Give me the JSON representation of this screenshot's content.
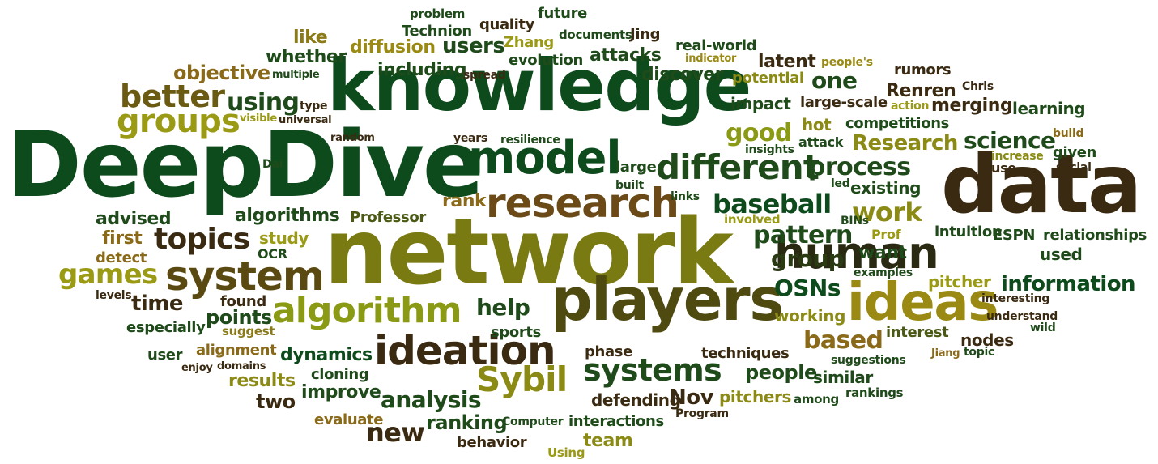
{
  "colors": {
    "dark_green": "#1f4a1a",
    "forest_green": "#0e4b1c",
    "olive": "#6b6f10",
    "gold": "#9a9a14",
    "brown": "#3b2a12",
    "ochre": "#8a6a18",
    "moss": "#4a5a14"
  },
  "words": [
    {
      "text": "DeepDive",
      "color": "#0e4b1c"
    },
    {
      "text": "network",
      "color": "#7a7a12"
    },
    {
      "text": "knowledge",
      "color": "#0e4b1c"
    },
    {
      "text": "data",
      "color": "#3b2a12"
    },
    {
      "text": "players",
      "color": "#4f4a10"
    },
    {
      "text": "model",
      "color": "#0e4b1c"
    },
    {
      "text": "research",
      "color": "#6b4a18"
    },
    {
      "text": "ideas",
      "color": "#9a8a14"
    },
    {
      "text": "human",
      "color": "#2a2a12"
    },
    {
      "text": "ideation",
      "color": "#3b2a12"
    },
    {
      "text": "system",
      "color": "#5a4a12"
    },
    {
      "text": "algorithm",
      "color": "#8a9a14"
    },
    {
      "text": "different",
      "color": "#1f4a1a"
    },
    {
      "text": "groups",
      "color": "#9a9a14"
    },
    {
      "text": "better",
      "color": "#6b5a12"
    },
    {
      "text": "Sybil",
      "color": "#8a8a14"
    },
    {
      "text": "systems",
      "color": "#1f4a1a"
    },
    {
      "text": "topics",
      "color": "#3b2a12"
    },
    {
      "text": "baseball",
      "color": "#0e4b1c"
    },
    {
      "text": "pattern",
      "color": "#1f4a1a"
    },
    {
      "text": "games",
      "color": "#9a9a14"
    },
    {
      "text": "process",
      "color": "#1f4a1a"
    },
    {
      "text": "work",
      "color": "#8a8a14"
    },
    {
      "text": "information",
      "color": "#0e4b1c"
    },
    {
      "text": "analysis",
      "color": "#1f4a1a"
    },
    {
      "text": "new",
      "color": "#3b2a12"
    },
    {
      "text": "good",
      "color": "#8a9a14"
    },
    {
      "text": "science",
      "color": "#1f4a1a"
    },
    {
      "text": "using",
      "color": "#1f4a1a"
    },
    {
      "text": "group",
      "color": "#2a3a12"
    },
    {
      "text": "help",
      "color": "#1f4a1a"
    },
    {
      "text": "OSNs",
      "color": "#0e4b1c"
    },
    {
      "text": "based",
      "color": "#8a6a18"
    },
    {
      "text": "people",
      "color": "#1f4a1a"
    },
    {
      "text": "ranking",
      "color": "#1f4a1a"
    },
    {
      "text": "time",
      "color": "#3b2a12"
    },
    {
      "text": "points",
      "color": "#1f4a1a"
    },
    {
      "text": "one",
      "color": "#1f4a1a"
    },
    {
      "text": "Research",
      "color": "#8a8a14"
    },
    {
      "text": "Renren",
      "color": "#3b2a12"
    },
    {
      "text": "Nov",
      "color": "#3b2a12"
    },
    {
      "text": "dynamics",
      "color": "#0e4b1c"
    },
    {
      "text": "results",
      "color": "#8a8a14"
    },
    {
      "text": "two",
      "color": "#3b2a12"
    },
    {
      "text": "improve",
      "color": "#1f4a1a"
    },
    {
      "text": "users",
      "color": "#1f4a1a"
    },
    {
      "text": "including",
      "color": "#1f4a1a"
    },
    {
      "text": "whether",
      "color": "#1f4a1a"
    },
    {
      "text": "diffusion",
      "color": "#9a8a14"
    },
    {
      "text": "objective",
      "color": "#8a6a18"
    },
    {
      "text": "attacks",
      "color": "#1f4a1a"
    },
    {
      "text": "discover",
      "color": "#1f4a1a"
    },
    {
      "text": "latent",
      "color": "#3b2a12"
    },
    {
      "text": "merging",
      "color": "#3b2a12"
    },
    {
      "text": "rank",
      "color": "#8a6a18"
    },
    {
      "text": "algorithms",
      "color": "#1f4a1a"
    },
    {
      "text": "advised",
      "color": "#1f4a1a"
    },
    {
      "text": "Professor",
      "color": "#4a5a14"
    },
    {
      "text": "study",
      "color": "#9a9a14"
    },
    {
      "text": "first",
      "color": "#8a6a18"
    },
    {
      "text": "detect",
      "color": "#8a6a18"
    },
    {
      "text": "OCR",
      "color": "#1f4a1a"
    },
    {
      "text": "especially",
      "color": "#1f4a1a"
    },
    {
      "text": "suggest",
      "color": "#8a7a18"
    },
    {
      "text": "alignment",
      "color": "#8a6a18"
    },
    {
      "text": "user",
      "color": "#1f4a1a"
    },
    {
      "text": "found",
      "color": "#3b2a12"
    },
    {
      "text": "cloning",
      "color": "#1f4a1a"
    },
    {
      "text": "evaluate",
      "color": "#8a6a18"
    },
    {
      "text": "behavior",
      "color": "#3b2a12"
    },
    {
      "text": "team",
      "color": "#8a8a14"
    },
    {
      "text": "interactions",
      "color": "#1f4a1a"
    },
    {
      "text": "defending",
      "color": "#3b2a12"
    },
    {
      "text": "pitchers",
      "color": "#8a8a14"
    },
    {
      "text": "similar",
      "color": "#1f4a1a"
    },
    {
      "text": "working",
      "color": "#8a8a14"
    },
    {
      "text": "techniques",
      "color": "#3b2a12"
    },
    {
      "text": "phase",
      "color": "#3b2a12"
    },
    {
      "text": "sports",
      "color": "#1f4a1a"
    },
    {
      "text": "pitcher",
      "color": "#9a9a14"
    },
    {
      "text": "interest",
      "color": "#4a5a14"
    },
    {
      "text": "nodes",
      "color": "#3b2a12"
    },
    {
      "text": "used",
      "color": "#1f4a1a"
    },
    {
      "text": "want",
      "color": "#1f4a1a"
    },
    {
      "text": "intuition",
      "color": "#1f4a1a"
    },
    {
      "text": "ESPN",
      "color": "#1f4a1a"
    },
    {
      "text": "relationships",
      "color": "#1f4a1a"
    },
    {
      "text": "existing",
      "color": "#1f4a1a"
    },
    {
      "text": "competitions",
      "color": "#1f4a1a"
    },
    {
      "text": "hot",
      "color": "#8a8a14"
    },
    {
      "text": "impact",
      "color": "#1f4a1a"
    },
    {
      "text": "potential",
      "color": "#8a8a14"
    },
    {
      "text": "large-scale",
      "color": "#3b2a12"
    },
    {
      "text": "learning",
      "color": "#1f4a1a"
    },
    {
      "text": "real-world",
      "color": "#1f4a1a"
    },
    {
      "text": "rumors",
      "color": "#3b2a12"
    },
    {
      "text": "evolution",
      "color": "#1f4a1a"
    },
    {
      "text": "quality",
      "color": "#3b2a12"
    },
    {
      "text": "future",
      "color": "#1f4a1a"
    },
    {
      "text": "Technion",
      "color": "#1f4a1a"
    },
    {
      "text": "Jing",
      "color": "#3b2a12"
    },
    {
      "text": "Zhang",
      "color": "#9a9a14"
    },
    {
      "text": "like",
      "color": "#8a7a18"
    },
    {
      "text": "problem",
      "color": "#1f4a1a"
    },
    {
      "text": "documents",
      "color": "#1f4a1a"
    },
    {
      "text": "indicator",
      "color": "#9a8a14"
    },
    {
      "text": "people's",
      "color": "#9a8a14"
    },
    {
      "text": "multiple",
      "color": "#1f4a1a"
    },
    {
      "text": "spread",
      "color": "#3b2a12"
    },
    {
      "text": "type",
      "color": "#3b2a12"
    },
    {
      "text": "visible",
      "color": "#9a9a14"
    },
    {
      "text": "universal",
      "color": "#3b2a12"
    },
    {
      "text": "random",
      "color": "#3b2a12"
    },
    {
      "text": "years",
      "color": "#3b2a12"
    },
    {
      "text": "resilience",
      "color": "#1f4a1a"
    },
    {
      "text": "insights",
      "color": "#1f4a1a"
    },
    {
      "text": "attack",
      "color": "#1f4a1a"
    },
    {
      "text": "action",
      "color": "#9a9a14"
    },
    {
      "text": "Chris",
      "color": "#3b2a12"
    },
    {
      "text": "build",
      "color": "#8a6a18"
    },
    {
      "text": "given",
      "color": "#1f4a1a"
    },
    {
      "text": "increase",
      "color": "#8a8a14"
    },
    {
      "text": "use",
      "color": "#3b2a12"
    },
    {
      "text": "social",
      "color": "#3b2a12"
    },
    {
      "text": "Dai",
      "color": "#1f4a1a"
    },
    {
      "text": "large",
      "color": "#1f4a1a"
    },
    {
      "text": "built",
      "color": "#1f4a1a"
    },
    {
      "text": "links",
      "color": "#1f4a1a"
    },
    {
      "text": "led",
      "color": "#1f4a1a"
    },
    {
      "text": "involved",
      "color": "#9a9a14"
    },
    {
      "text": "BINs",
      "color": "#1f4a1a"
    },
    {
      "text": "Prof",
      "color": "#9a9a14"
    },
    {
      "text": "examples",
      "color": "#1f4a1a"
    },
    {
      "text": "interesting",
      "color": "#3b2a12"
    },
    {
      "text": "understand",
      "color": "#3b2a12"
    },
    {
      "text": "wild",
      "color": "#1f4a1a"
    },
    {
      "text": "topic",
      "color": "#1f4a1a"
    },
    {
      "text": "Jiang",
      "color": "#8a6a18"
    },
    {
      "text": "suggestions",
      "color": "#1f4a1a"
    },
    {
      "text": "among",
      "color": "#1f4a1a"
    },
    {
      "text": "rankings",
      "color": "#1f4a1a"
    },
    {
      "text": "Program",
      "color": "#3b2a12"
    },
    {
      "text": "Computer",
      "color": "#1f4a1a"
    },
    {
      "text": "Using",
      "color": "#9a9a14"
    },
    {
      "text": "levels",
      "color": "#3b2a12"
    },
    {
      "text": "enjoy",
      "color": "#3b2a12"
    },
    {
      "text": "domains",
      "color": "#3b2a12"
    }
  ]
}
